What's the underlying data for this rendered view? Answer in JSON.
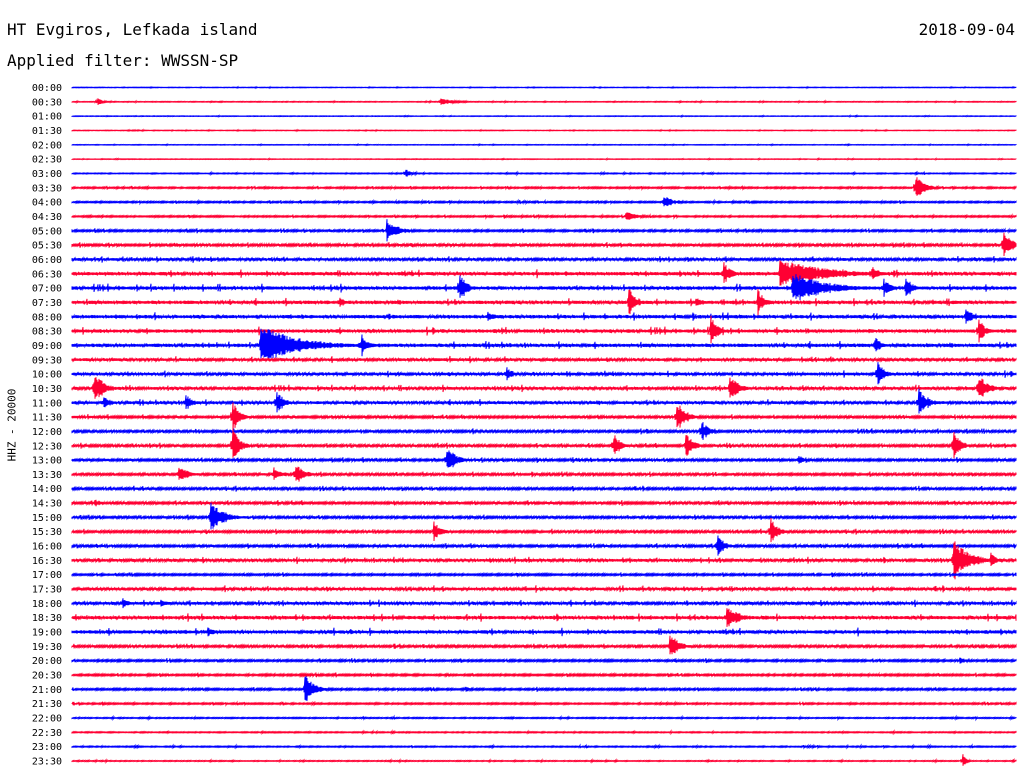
{
  "header": {
    "station": "HT Evgiros, Lefkada island",
    "date": "2018-09-04",
    "filter": "Applied filter: WWSSN-SP"
  },
  "channel_label": "HHZ - 20000",
  "colors": {
    "blue": "#0000ff",
    "red": "#ff0033"
  },
  "chart_data": {
    "type": "line",
    "subtype": "helicorder",
    "title": "HT Evgiros, Lefkada island",
    "date": "2018-09-04",
    "ylabel": "HHZ - 20000",
    "grid": false,
    "row_minutes": 30,
    "row_labels": [
      "00:00",
      "00:30",
      "01:00",
      "01:30",
      "02:00",
      "02:30",
      "03:00",
      "03:30",
      "04:00",
      "04:30",
      "05:00",
      "05:30",
      "06:00",
      "06:30",
      "07:00",
      "07:30",
      "08:00",
      "08:30",
      "09:00",
      "09:30",
      "10:00",
      "10:30",
      "11:00",
      "11:30",
      "12:00",
      "12:30",
      "13:00",
      "13:30",
      "14:00",
      "14:30",
      "15:00",
      "15:30",
      "16:00",
      "16:30",
      "17:00",
      "17:30",
      "18:00",
      "18:30",
      "19:00",
      "19:30",
      "20:00",
      "20:30",
      "21:00",
      "21:30",
      "22:00",
      "22:30",
      "23:00",
      "23:30"
    ],
    "row_colors": [
      "blue",
      "red"
    ],
    "x_range_minutes": [
      0,
      30
    ],
    "noise_level": [
      0.3,
      0.4,
      0.3,
      0.3,
      0.3,
      0.3,
      0.5,
      0.8,
      0.8,
      0.8,
      1.0,
      1.2,
      1.4,
      1.8,
      1.8,
      1.8,
      1.8,
      1.8,
      1.8,
      1.5,
      1.5,
      1.5,
      1.5,
      1.2,
      1.2,
      1.2,
      1.2,
      1.2,
      1.2,
      1.2,
      1.2,
      1.2,
      1.2,
      1.5,
      1.0,
      1.5,
      1.5,
      1.8,
      1.8,
      1.2,
      1.0,
      1.0,
      1.0,
      0.8,
      0.6,
      0.6,
      0.6,
      0.5
    ],
    "events": [
      {
        "row": "00:30",
        "t": 0.8,
        "amp": 5,
        "dur": 0.4
      },
      {
        "row": "00:30",
        "t": 11.7,
        "amp": 4,
        "dur": 1.2
      },
      {
        "row": "03:00",
        "t": 10.6,
        "amp": 6,
        "dur": 0.4
      },
      {
        "row": "03:30",
        "t": 26.8,
        "amp": 15,
        "dur": 0.8
      },
      {
        "row": "04:00",
        "t": 18.8,
        "amp": 8,
        "dur": 0.8
      },
      {
        "row": "04:30",
        "t": 17.6,
        "amp": 5,
        "dur": 1
      },
      {
        "row": "05:00",
        "t": 10.0,
        "amp": 12,
        "dur": 1
      },
      {
        "row": "05:30",
        "t": 29.6,
        "amp": 20,
        "dur": 0.6
      },
      {
        "row": "06:30",
        "t": 20.7,
        "amp": 14,
        "dur": 0.6
      },
      {
        "row": "06:30",
        "t": 22.5,
        "amp": 15,
        "dur": 4
      },
      {
        "row": "06:30",
        "t": 25.4,
        "amp": 10,
        "dur": 0.6
      },
      {
        "row": "07:00",
        "t": 12.3,
        "amp": 18,
        "dur": 0.6
      },
      {
        "row": "07:00",
        "t": 22.9,
        "amp": 16,
        "dur": 3
      },
      {
        "row": "07:00",
        "t": 25.8,
        "amp": 10,
        "dur": 0.6
      },
      {
        "row": "07:00",
        "t": 26.5,
        "amp": 12,
        "dur": 0.6
      },
      {
        "row": "07:30",
        "t": 8.5,
        "amp": 8,
        "dur": 0.4
      },
      {
        "row": "07:30",
        "t": 17.7,
        "amp": 16,
        "dur": 0.6
      },
      {
        "row": "07:30",
        "t": 19.8,
        "amp": 6,
        "dur": 0.8
      },
      {
        "row": "07:30",
        "t": 21.8,
        "amp": 14,
        "dur": 0.6
      },
      {
        "row": "08:00",
        "t": 13.2,
        "amp": 6,
        "dur": 1
      },
      {
        "row": "08:00",
        "t": 28.4,
        "amp": 10,
        "dur": 0.6
      },
      {
        "row": "08:30",
        "t": 20.3,
        "amp": 16,
        "dur": 0.6
      },
      {
        "row": "08:30",
        "t": 28.8,
        "amp": 14,
        "dur": 0.6
      },
      {
        "row": "09:00",
        "t": 6.0,
        "amp": 22,
        "dur": 3.2
      },
      {
        "row": "09:00",
        "t": 9.2,
        "amp": 12,
        "dur": 0.6
      },
      {
        "row": "09:00",
        "t": 25.5,
        "amp": 10,
        "dur": 0.6
      },
      {
        "row": "10:00",
        "t": 13.8,
        "amp": 8,
        "dur": 0.6
      },
      {
        "row": "10:00",
        "t": 25.6,
        "amp": 14,
        "dur": 0.6
      },
      {
        "row": "10:30",
        "t": 0.7,
        "amp": 20,
        "dur": 0.8
      },
      {
        "row": "10:30",
        "t": 20.9,
        "amp": 14,
        "dur": 0.8
      },
      {
        "row": "10:30",
        "t": 28.8,
        "amp": 16,
        "dur": 0.8
      },
      {
        "row": "11:00",
        "t": 1.0,
        "amp": 8,
        "dur": 0.6
      },
      {
        "row": "11:00",
        "t": 3.6,
        "amp": 10,
        "dur": 0.6
      },
      {
        "row": "11:00",
        "t": 6.5,
        "amp": 14,
        "dur": 0.6
      },
      {
        "row": "11:00",
        "t": 26.9,
        "amp": 16,
        "dur": 0.8
      },
      {
        "row": "11:30",
        "t": 5.1,
        "amp": 18,
        "dur": 0.6
      },
      {
        "row": "11:30",
        "t": 19.2,
        "amp": 18,
        "dur": 0.8
      },
      {
        "row": "12:00",
        "t": 20.0,
        "amp": 12,
        "dur": 0.6
      },
      {
        "row": "12:30",
        "t": 5.1,
        "amp": 20,
        "dur": 0.6
      },
      {
        "row": "12:30",
        "t": 17.2,
        "amp": 14,
        "dur": 0.6
      },
      {
        "row": "12:30",
        "t": 19.5,
        "amp": 16,
        "dur": 0.6
      },
      {
        "row": "12:30",
        "t": 28.0,
        "amp": 18,
        "dur": 0.6
      },
      {
        "row": "13:00",
        "t": 11.9,
        "amp": 16,
        "dur": 0.8
      },
      {
        "row": "13:00",
        "t": 23.1,
        "amp": 6,
        "dur": 0.4
      },
      {
        "row": "13:30",
        "t": 3.4,
        "amp": 8,
        "dur": 1
      },
      {
        "row": "13:30",
        "t": 6.4,
        "amp": 8,
        "dur": 0.8
      },
      {
        "row": "13:30",
        "t": 7.1,
        "amp": 12,
        "dur": 0.8
      },
      {
        "row": "14:30",
        "t": 0.7,
        "amp": 5,
        "dur": 0.6
      },
      {
        "row": "15:00",
        "t": 4.4,
        "amp": 16,
        "dur": 1.2
      },
      {
        "row": "15:30",
        "t": 11.5,
        "amp": 12,
        "dur": 0.6
      },
      {
        "row": "15:30",
        "t": 22.2,
        "amp": 16,
        "dur": 0.6
      },
      {
        "row": "16:00",
        "t": 20.5,
        "amp": 14,
        "dur": 0.6
      },
      {
        "row": "16:30",
        "t": 28.0,
        "amp": 22,
        "dur": 1.4
      },
      {
        "row": "16:30",
        "t": 29.2,
        "amp": 8,
        "dur": 0.6
      },
      {
        "row": "18:00",
        "t": 1.6,
        "amp": 6,
        "dur": 0.6
      },
      {
        "row": "18:00",
        "t": 2.8,
        "amp": 6,
        "dur": 0.6
      },
      {
        "row": "18:30",
        "t": 20.8,
        "amp": 12,
        "dur": 1.2
      },
      {
        "row": "19:00",
        "t": 4.3,
        "amp": 6,
        "dur": 0.6
      },
      {
        "row": "19:30",
        "t": 19.0,
        "amp": 14,
        "dur": 0.8
      },
      {
        "row": "20:00",
        "t": 28.2,
        "amp": 4,
        "dur": 0.6
      },
      {
        "row": "21:00",
        "t": 7.4,
        "amp": 16,
        "dur": 0.8
      },
      {
        "row": "21:00",
        "t": 12.5,
        "amp": 4,
        "dur": 0.4
      },
      {
        "row": "23:30",
        "t": 28.3,
        "amp": 8,
        "dur": 0.3
      }
    ]
  }
}
